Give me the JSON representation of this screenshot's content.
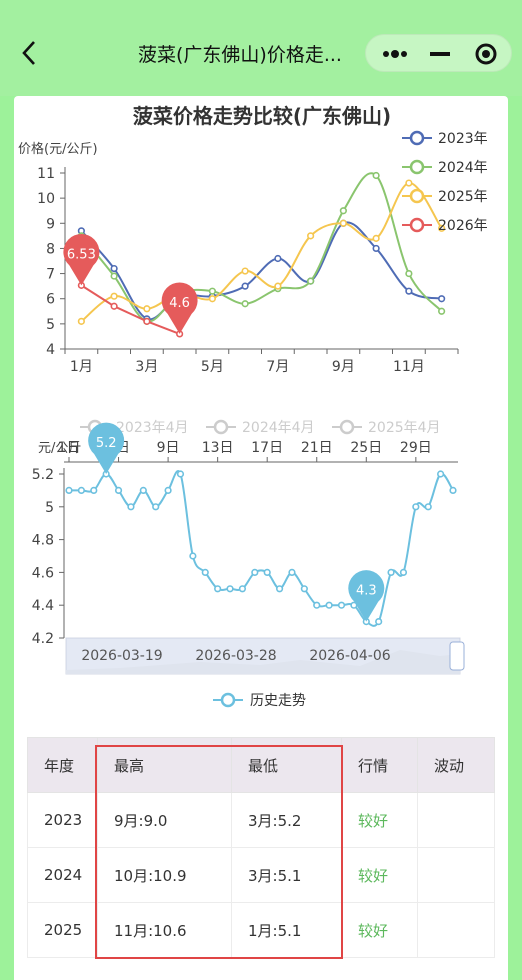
{
  "header": {
    "title": "菠菜(广东佛山)价格走...",
    "back_icon": "chevron-left-icon",
    "more_icon": "more-dots-icon",
    "minimize_icon": "minus-icon",
    "close_icon": "target-close-icon"
  },
  "chart_data": [
    {
      "type": "line",
      "title": "菠菜价格走势比较(广东佛山)",
      "ylabel": "价格(元/公斤)",
      "ylim": [
        4,
        11
      ],
      "yticks": [
        "4",
        "5",
        "6",
        "7",
        "8",
        "9",
        "10",
        "11"
      ],
      "xticks": [
        "1月",
        "3月",
        "5月",
        "7月",
        "9月",
        "11月"
      ],
      "legend_position": "top-right",
      "series": [
        {
          "name": "2023年",
          "color": "#4f6cb5",
          "x": [
            1,
            2,
            3,
            4,
            5,
            6,
            7,
            8,
            9,
            10,
            11,
            12
          ],
          "values": [
            8.7,
            7.2,
            5.2,
            6.1,
            6.1,
            6.5,
            7.6,
            6.7,
            9.0,
            8.0,
            6.3,
            6.0
          ]
        },
        {
          "name": "2024年",
          "color": "#8ac56e",
          "x": [
            1,
            2,
            3,
            4,
            5,
            6,
            7,
            8,
            9,
            10,
            11,
            12
          ],
          "values": [
            8.5,
            6.9,
            5.1,
            6.2,
            6.3,
            5.8,
            6.4,
            6.7,
            9.5,
            10.9,
            7.0,
            5.5
          ]
        },
        {
          "name": "2025年",
          "color": "#f5c64f",
          "x": [
            1,
            2,
            3,
            4,
            5,
            6,
            7,
            8,
            9,
            10,
            11,
            12
          ],
          "values": [
            5.1,
            6.1,
            5.6,
            6.2,
            6.0,
            7.1,
            6.5,
            8.5,
            9.0,
            8.4,
            10.6,
            8.8
          ]
        },
        {
          "name": "2026年",
          "color": "#e55b5b",
          "x": [
            1,
            2,
            3,
            4
          ],
          "values": [
            6.53,
            5.7,
            5.1,
            4.6
          ]
        }
      ],
      "markers": [
        "6.53",
        "4.6"
      ]
    },
    {
      "type": "line",
      "ylabel": "元/公斤",
      "ylim": [
        4.2,
        5.2
      ],
      "yticks": [
        "4.2",
        "4.4",
        "4.6",
        "4.8",
        "5",
        "5.2"
      ],
      "xticks": [
        "1日",
        "5日",
        "9日",
        "13日",
        "17日",
        "21日",
        "25日",
        "29日"
      ],
      "legend_top": [
        "2023年4月",
        "2024年4月",
        "2025年4月"
      ],
      "legend_bottom": "历史走势",
      "slider_dates": [
        "2026-03-19",
        "2026-03-28",
        "2026-04-06"
      ],
      "color": "#6cc0df",
      "values": [
        5.1,
        5.1,
        5.1,
        5.2,
        5.1,
        5.0,
        5.1,
        5.0,
        5.1,
        5.2,
        4.7,
        4.6,
        4.5,
        4.5,
        4.5,
        4.6,
        4.6,
        4.5,
        4.6,
        4.5,
        4.4,
        4.4,
        4.4,
        4.4,
        4.3,
        4.3,
        4.6,
        4.6,
        5.0,
        5.0,
        5.2,
        5.1
      ],
      "markers": [
        "5.2",
        "4.3"
      ]
    }
  ],
  "table": {
    "headers": [
      "年度",
      "最高",
      "最低",
      "行情",
      "波动"
    ],
    "rows": [
      {
        "year": "2023",
        "high": "9月:9.0",
        "low": "3月:5.2",
        "trend": "较好",
        "wave": ""
      },
      {
        "year": "2024",
        "high": "10月:10.9",
        "low": "3月:5.1",
        "trend": "较好",
        "wave": ""
      },
      {
        "year": "2025",
        "high": "11月:10.6",
        "low": "1月:5.1",
        "trend": "较好",
        "wave": ""
      }
    ]
  }
}
